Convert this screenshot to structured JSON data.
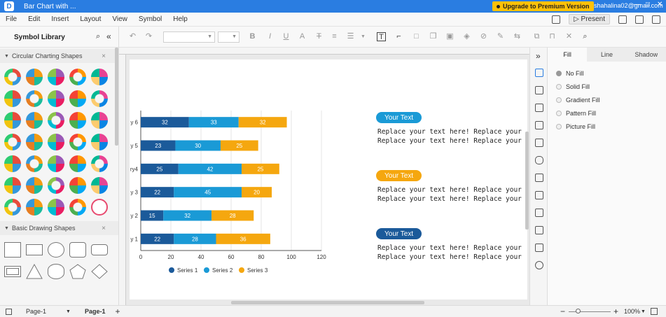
{
  "titlebar": {
    "logo": "D",
    "title": "Bar Chart with ...",
    "upgrade_label": "Upgrade to Premium Version",
    "account": "shahalina02@gmail.com",
    "min": "—",
    "max": "□",
    "close": "✕"
  },
  "menubar": {
    "items": [
      "File",
      "Edit",
      "Insert",
      "Layout",
      "View",
      "Symbol",
      "Help"
    ],
    "present_label": "Present"
  },
  "library": {
    "title": "Symbol Library",
    "sections": [
      {
        "label": "Circular Charting Shapes",
        "close": "×"
      },
      {
        "label": "Basic Drawing Shapes",
        "close": "×"
      }
    ]
  },
  "chart_data": {
    "type": "bar",
    "orientation": "horizontal",
    "stacked": true,
    "categories": [
      "y 1",
      "y 2",
      "y 3",
      "ry4",
      "y 5",
      "y 6"
    ],
    "series": [
      {
        "name": "Series 1",
        "color": "#1b5a9a",
        "values": [
          22,
          15,
          22,
          25,
          23,
          32
        ]
      },
      {
        "name": "Series 2",
        "color": "#1a9ad6",
        "values": [
          28,
          32,
          45,
          42,
          30,
          33
        ]
      },
      {
        "name": "Series 3",
        "color": "#f5a70f",
        "values": [
          36,
          28,
          20,
          25,
          25,
          32
        ]
      }
    ],
    "xticks": [
      "0",
      "20",
      "40",
      "60",
      "80",
      "100",
      "120"
    ],
    "xlim": [
      0,
      120
    ],
    "legend": "bottom"
  },
  "text_blocks": [
    {
      "heading": "Your Text",
      "color": "#1a9ad6",
      "line1": "Replace your text here!  Replace your text he",
      "line2": "Replace your text here!  Replace your text he"
    },
    {
      "heading": "Your Text",
      "color": "#f5a70f",
      "line1": "Replace your text here!  Replace your text he",
      "line2": "Replace your text here!  Replace your text he"
    },
    {
      "heading": "Your Text",
      "color": "#1b5a9a",
      "line1": "Replace your text here!  Replace your text he",
      "line2": "Replace your text here!  Replace your text he"
    }
  ],
  "right_panel": {
    "tabs": [
      "Fill",
      "Line",
      "Shadow"
    ],
    "fill_options": [
      "No Fill",
      "Solid Fill",
      "Gradient Fill",
      "Pattern Fill",
      "Picture Fill"
    ]
  },
  "statusbar": {
    "page_dropdown": "Page-1",
    "active_page": "Page-1",
    "add": "+",
    "zoom": "100%"
  }
}
